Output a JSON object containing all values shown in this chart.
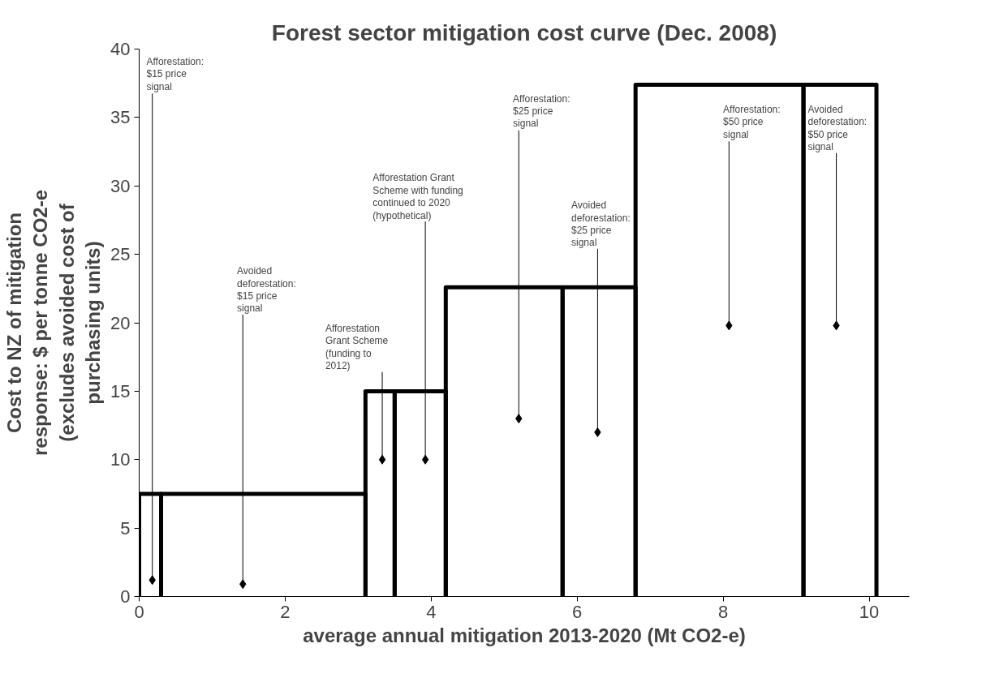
{
  "chart_data": {
    "type": "line",
    "title": "Forest sector mitigation cost curve (Dec. 2008)",
    "xlabel": "average annual mitigation 2013-2020 (Mt CO2-e)",
    "ylabel": "Cost to NZ of mitigation response: $ per tonne CO2-e (excludes avoided cost of purchasing units)",
    "series": [
      {
        "color": "#000000",
        "x": [
          0,
          0,
          0.3,
          0.3
        ],
        "values": [
          0,
          7.5,
          7.5,
          0
        ]
      },
      {
        "color": "#000000",
        "x": [
          0.3,
          0.3,
          3.1,
          3.1
        ],
        "values": [
          0,
          7.5,
          7.5,
          0
        ]
      },
      {
        "color": "#000000",
        "x": [
          3.1,
          3.1,
          3.5,
          3.5
        ],
        "values": [
          0,
          15,
          15,
          0
        ]
      },
      {
        "color": "#000000",
        "x": [
          3.5,
          3.5,
          4.2,
          4.2
        ],
        "values": [
          0,
          15,
          15,
          0
        ]
      },
      {
        "color": "#000000",
        "x": [
          4.2,
          4.2,
          5.8,
          5.8
        ],
        "values": [
          0,
          22.6,
          22.6,
          0
        ]
      },
      {
        "color": "#000000",
        "x": [
          5.8,
          5.8,
          6.8,
          6.8
        ],
        "values": [
          0,
          22.6,
          22.6,
          0
        ]
      },
      {
        "color": "#000000",
        "x": [
          6.8,
          6.8,
          9.1,
          9.1
        ],
        "values": [
          0,
          37.4,
          37.4,
          0
        ]
      },
      {
        "color": "#000000",
        "x": [
          9.1,
          9.1,
          10.1,
          10.1
        ],
        "values": [
          0,
          37.4,
          37.4,
          0
        ]
      }
    ],
    "annotations": [
      {
        "text": "Afforestation: $15 price signal",
        "x": 0.18,
        "y": 1.2
      },
      {
        "text": "Avoided deforestation: $15 price signal",
        "x": 1.42,
        "y": 0.9
      },
      {
        "text": "Afforestation Grant Scheme (funding to 2012)",
        "x": 3.33,
        "y": 10
      },
      {
        "text": "Afforestation Grant Scheme with funding continued to 2020 (hypothetical)",
        "x": 3.92,
        "y": 10
      },
      {
        "text": "Afforestation: $25 price signal",
        "x": 5.2,
        "y": 13
      },
      {
        "text": "Avoided deforestation: $25 price signal",
        "x": 6.28,
        "y": 12
      },
      {
        "text": "Afforestation: $50 price signal",
        "x": 8.08,
        "y": 19.8
      },
      {
        "text": "Avoided deforestation: $50 price signal",
        "x": 9.55,
        "y": 19.8
      }
    ],
    "xlim": [
      0,
      10.55
    ],
    "xticks": [
      0,
      2,
      4,
      6,
      8,
      10
    ],
    "ylim": [
      0,
      40
    ],
    "yticks": [
      0,
      5,
      10,
      15,
      20,
      25,
      30,
      35,
      40
    ],
    "grid": false,
    "marker": "none",
    "line_style": "solid"
  }
}
